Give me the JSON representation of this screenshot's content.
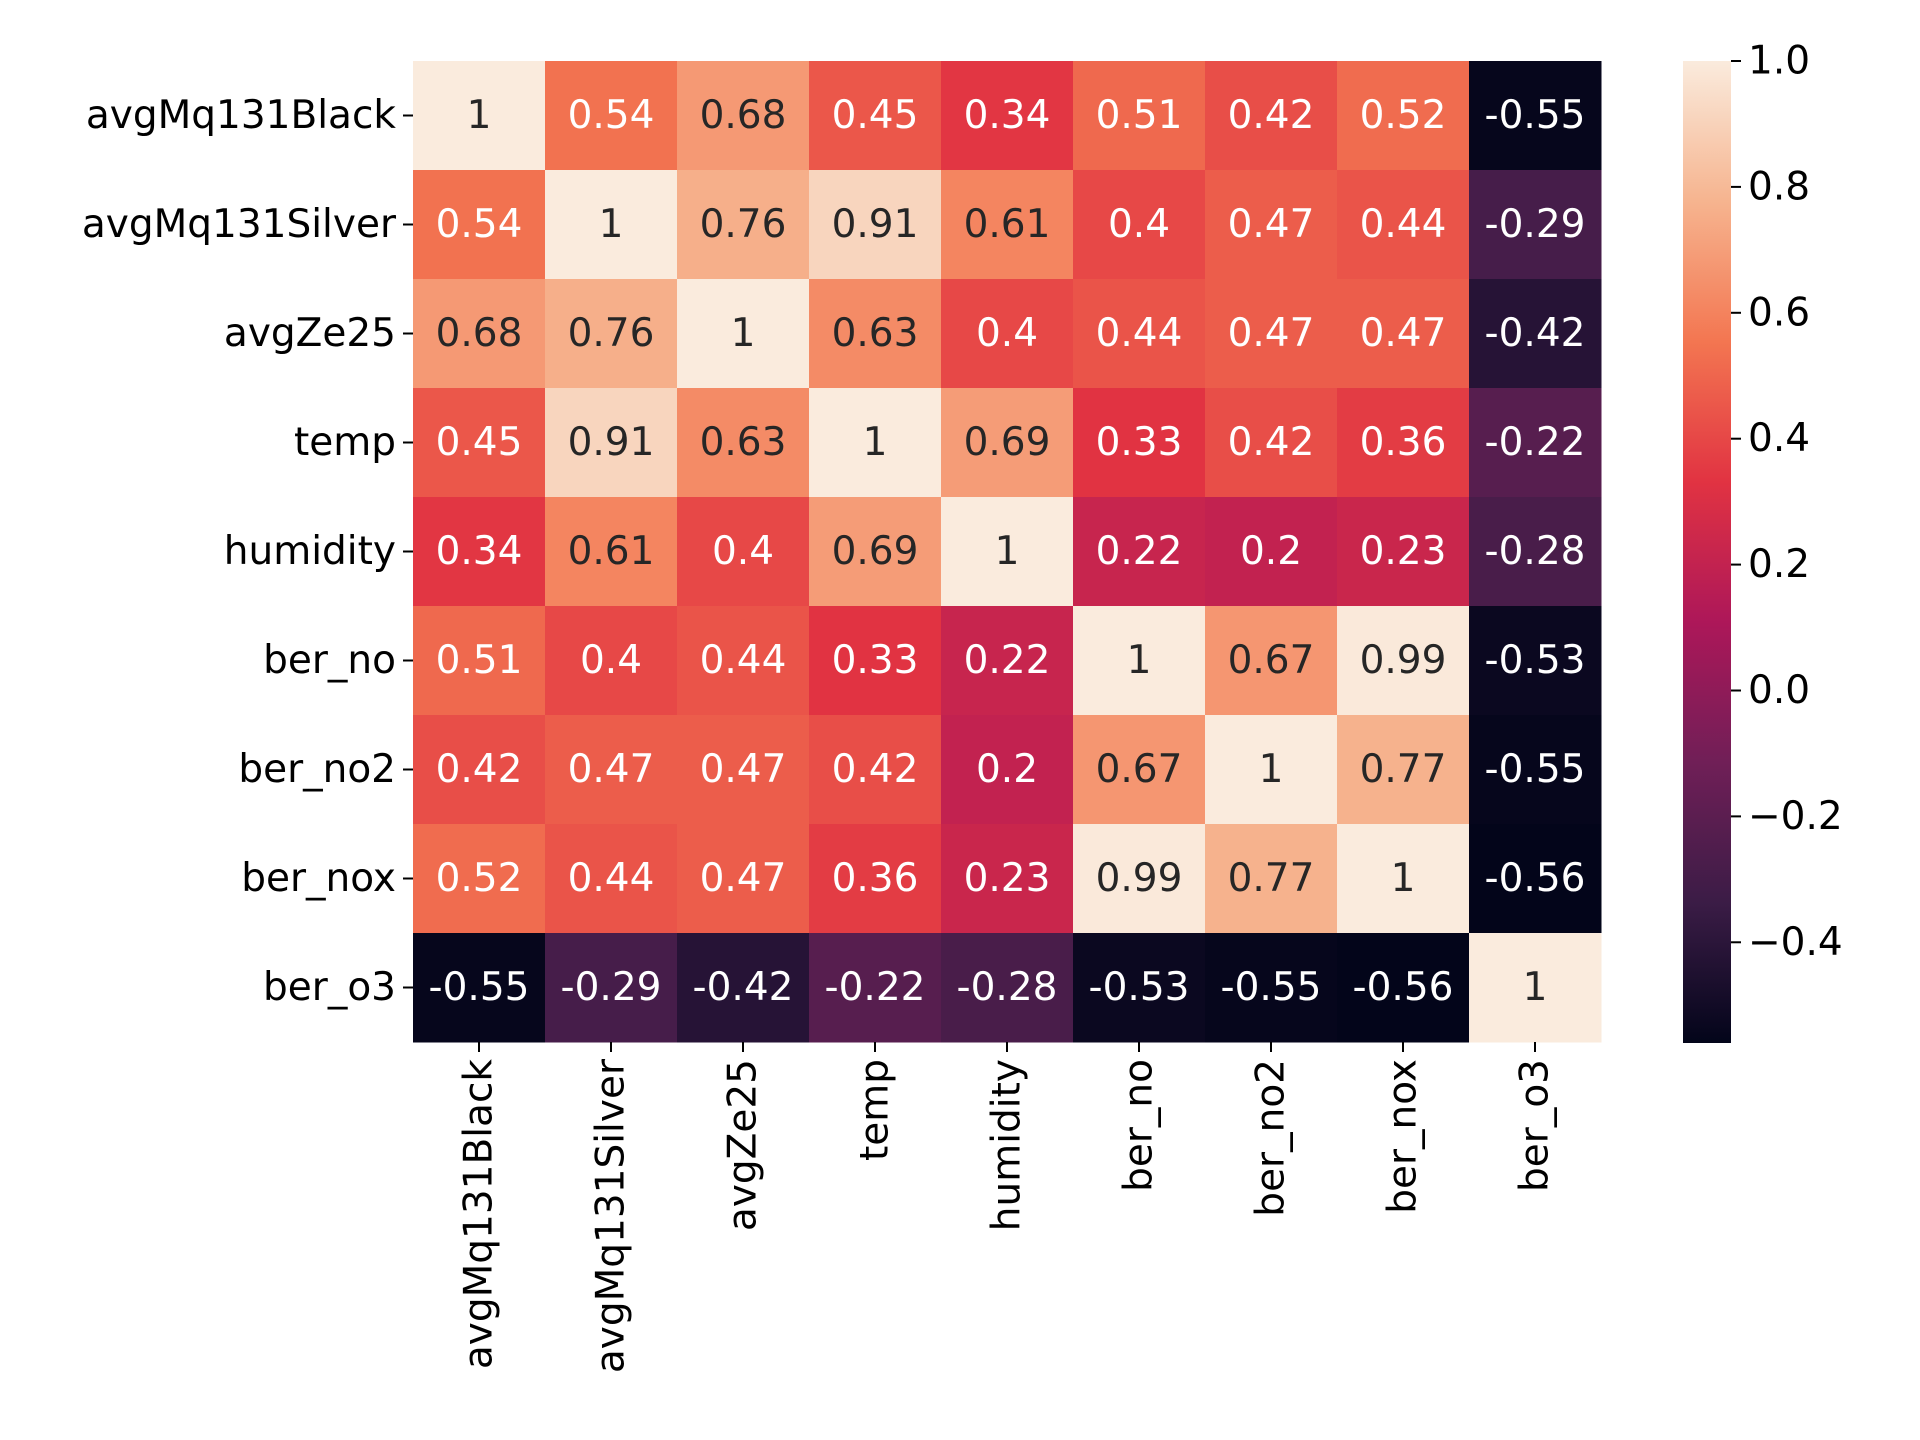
{
  "chart_data": {
    "type": "heatmap",
    "title": "",
    "xlabel": "",
    "ylabel": "",
    "row_labels": [
      "avgMq131Black",
      "avgMq131Silver",
      "avgZe25",
      "temp",
      "humidity",
      "ber_no",
      "ber_no2",
      "ber_nox",
      "ber_o3"
    ],
    "col_labels": [
      "avgMq131Black",
      "avgMq131Silver",
      "avgZe25",
      "temp",
      "humidity",
      "ber_no",
      "ber_no2",
      "ber_nox",
      "ber_o3"
    ],
    "values": [
      [
        1,
        0.54,
        0.68,
        0.45,
        0.34,
        0.51,
        0.42,
        0.52,
        -0.55
      ],
      [
        0.54,
        1,
        0.76,
        0.91,
        0.61,
        0.4,
        0.47,
        0.44,
        -0.29
      ],
      [
        0.68,
        0.76,
        1,
        0.63,
        0.4,
        0.44,
        0.47,
        0.47,
        -0.42
      ],
      [
        0.45,
        0.91,
        0.63,
        1,
        0.69,
        0.33,
        0.42,
        0.36,
        -0.22
      ],
      [
        0.34,
        0.61,
        0.4,
        0.69,
        1,
        0.22,
        0.2,
        0.23,
        -0.28
      ],
      [
        0.51,
        0.4,
        0.44,
        0.33,
        0.22,
        1,
        0.67,
        0.99,
        -0.53
      ],
      [
        0.42,
        0.47,
        0.47,
        0.42,
        0.2,
        0.67,
        1,
        0.77,
        -0.55
      ],
      [
        0.52,
        0.44,
        0.47,
        0.36,
        0.23,
        0.99,
        0.77,
        1,
        -0.56
      ],
      [
        -0.55,
        -0.29,
        -0.42,
        -0.22,
        -0.28,
        -0.53,
        -0.55,
        -0.56,
        1
      ]
    ],
    "colorbar": {
      "min": -0.56,
      "max": 1.0,
      "ticks": [
        1.0,
        0.8,
        0.6,
        0.4,
        0.2,
        0.0,
        -0.2,
        -0.4
      ],
      "tick_labels": [
        "1.0",
        "0.8",
        "0.6",
        "0.4",
        "0.2",
        "0.0",
        "−0.2",
        "−0.4"
      ],
      "colormap": "rocket",
      "colormap_stops": [
        "#03051a",
        "#3b1c46",
        "#701f57",
        "#ad1759",
        "#e13342",
        "#f37651",
        "#f6b48f",
        "#faebdd"
      ]
    },
    "annotation_colors": {
      "dark_text": "#262626",
      "light_text": "#ffffff"
    },
    "grid": false,
    "legend": "none"
  }
}
